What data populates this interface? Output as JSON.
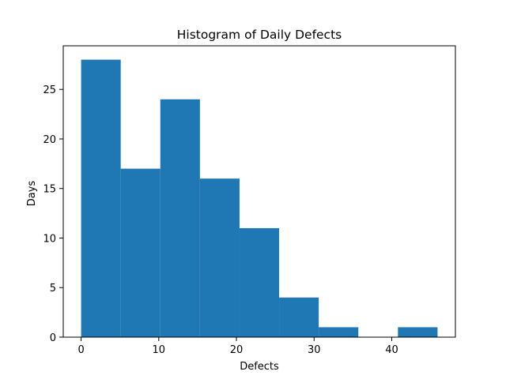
{
  "chart_data": {
    "type": "bar",
    "subtype": "histogram",
    "title": "Histogram of Daily Defects",
    "xlabel": "Defects",
    "ylabel": "Days",
    "bins": [
      {
        "x0": 0.0,
        "x1": 5.1,
        "count": 28
      },
      {
        "x0": 5.1,
        "x1": 10.2,
        "count": 17
      },
      {
        "x0": 10.2,
        "x1": 15.3,
        "count": 24
      },
      {
        "x0": 15.3,
        "x1": 20.4,
        "count": 16
      },
      {
        "x0": 20.4,
        "x1": 25.5,
        "count": 11
      },
      {
        "x0": 25.5,
        "x1": 30.6,
        "count": 4
      },
      {
        "x0": 30.6,
        "x1": 35.7,
        "count": 1
      },
      {
        "x0": 35.7,
        "x1": 40.8,
        "count": 0
      },
      {
        "x0": 40.8,
        "x1": 45.9,
        "count": 1
      }
    ],
    "xlim": [
      -2.3,
      48.2
    ],
    "ylim": [
      0,
      29.4
    ],
    "xticks": [
      0,
      10,
      20,
      30,
      40
    ],
    "yticks": [
      0,
      5,
      10,
      15,
      20,
      25
    ],
    "bar_color": "#1f77b4",
    "grid": false,
    "legend": "none"
  }
}
